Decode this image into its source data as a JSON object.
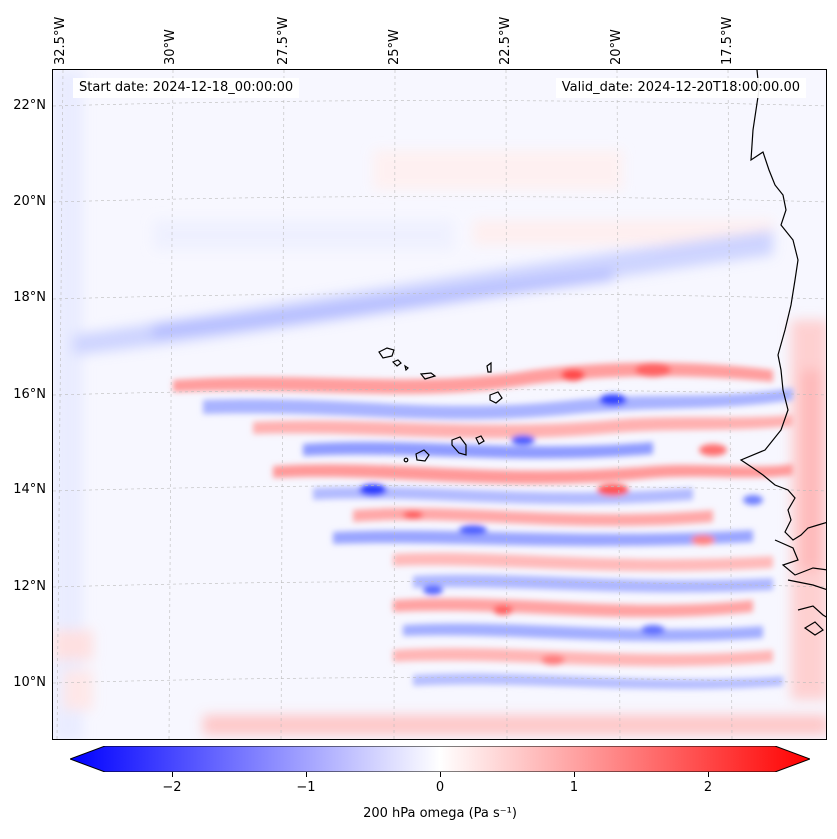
{
  "map": {
    "start_label": "Start date: 2024-12-18_00:00:00",
    "valid_label": "Valid_date: 2024-12-20T18:00:00.00",
    "longitude_labels": [
      "32.5°W",
      "30°W",
      "27.5°W",
      "25°W",
      "22.5°W",
      "20°W",
      "17.5°W"
    ],
    "latitude_labels": [
      "22°N",
      "20°N",
      "18°N",
      "16°N",
      "14°N",
      "12°N",
      "10°N"
    ],
    "extent": {
      "lon_min": -32.8,
      "lon_max": -15.6,
      "lat_min": 8.9,
      "lat_max": 22.7
    }
  },
  "colorbar": {
    "label": "200 hPa omega (Pa s⁻¹)",
    "ticks": [
      "−2",
      "−1",
      "0",
      "1",
      "2"
    ],
    "range": [
      -2.5,
      2.5
    ],
    "colors": {
      "negative": "#0000ff",
      "zero": "#ffffff",
      "positive": "#ff0000"
    }
  }
}
